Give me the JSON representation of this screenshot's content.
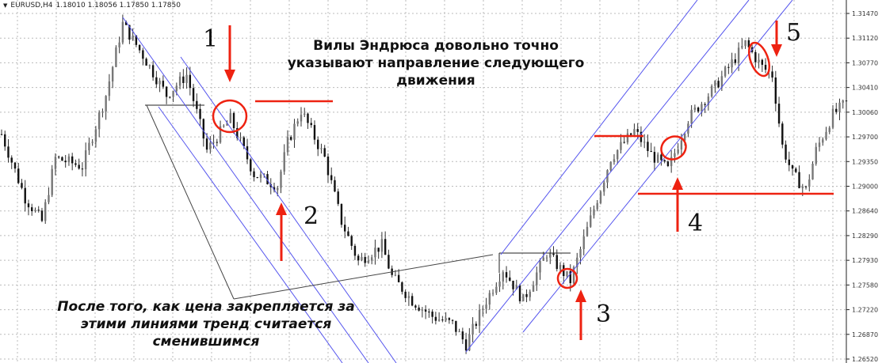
{
  "header": {
    "symbol": "EURUSD,H4",
    "ohlc": "1.18010 1.18056 1.17850 1.17850",
    "menu_icon": "triangle-down-icon"
  },
  "annotations": {
    "top_note": "Вилы Эндрюса довольно точно указывают направление следующего движения",
    "bottom_note": "После того, как цена закрепляется за этими линиями тренд считается сменившимся",
    "labels": [
      "1",
      "2",
      "3",
      "4",
      "5"
    ],
    "pitchfork_color": "#5555ee",
    "marker_color": "#ee2211"
  },
  "chart_data": {
    "type": "candlestick",
    "title": "",
    "ylim": [
      1.2652,
      1.3147
    ],
    "yticks": [
      "1.31470",
      "1.31120",
      "1.30770",
      "1.30410",
      "1.30060",
      "1.29700",
      "1.29350",
      "1.29000",
      "1.28640",
      "1.28290",
      "1.27930",
      "1.27580",
      "1.27220",
      "1.26870",
      "1.26520"
    ],
    "grid": true,
    "price_path": {
      "bar": [
        0,
        7,
        12,
        16,
        24,
        31,
        36,
        42,
        49,
        55,
        61,
        68,
        75,
        82,
        85,
        89,
        96,
        101,
        106,
        113,
        116,
        122,
        128,
        134,
        138,
        144,
        149,
        155,
        162,
        169,
        174,
        181,
        188,
        193,
        198,
        204,
        212,
        221,
        226,
        229,
        232,
        235,
        239,
        242,
        247,
        251
      ],
      "close": [
        1.2974,
        1.2883,
        1.2849,
        1.294,
        1.2928,
        1.303,
        1.3132,
        1.3087,
        1.303,
        1.3059,
        1.2951,
        1.2996,
        1.2917,
        1.29,
        1.2962,
        1.3008,
        1.294,
        1.2849,
        1.2792,
        1.2815,
        1.277,
        1.2736,
        1.2713,
        1.2702,
        1.2673,
        1.2736,
        1.2781,
        1.2736,
        1.2804,
        1.2764,
        1.2838,
        1.294,
        1.2979,
        1.2945,
        1.2923,
        1.2996,
        1.3042,
        1.3104,
        1.307,
        1.3059,
        1.2957,
        1.2917,
        1.2894,
        1.2951,
        1.3002,
        1.3019
      ]
    }
  }
}
